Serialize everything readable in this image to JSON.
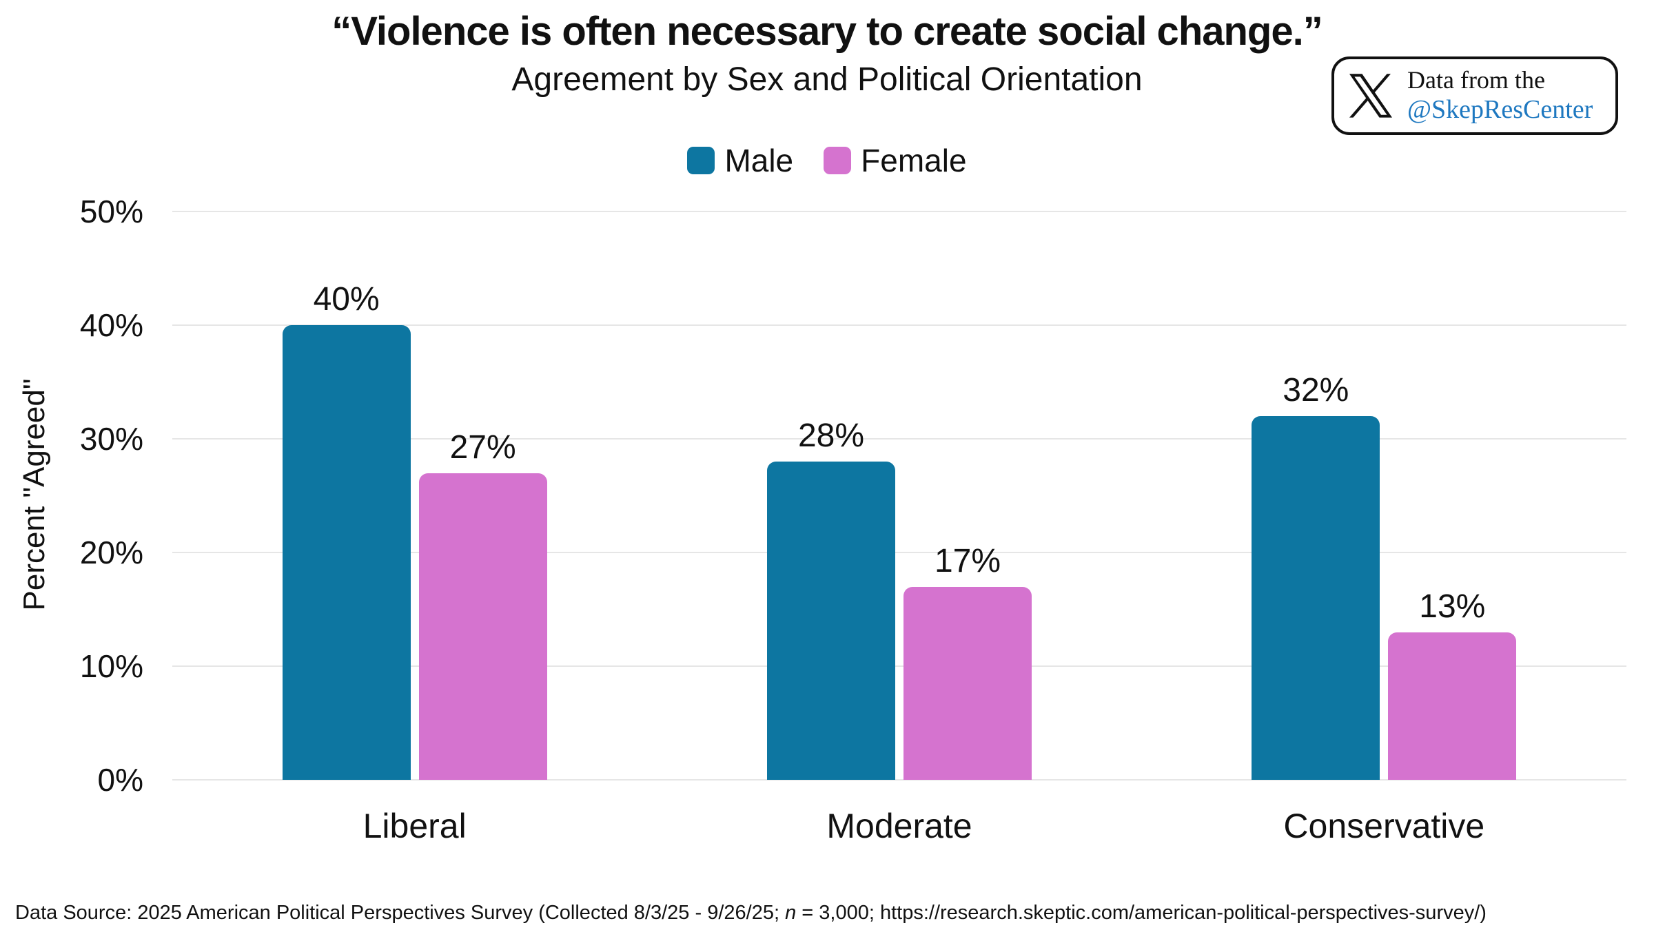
{
  "title": "“Violence is often necessary to create social change.”",
  "subtitle": "Agreement by Sex and Political Orientation",
  "badge": {
    "icon": "x-logo",
    "line1": "Data from the",
    "line2": "@SkepResCenter",
    "handle_color": "#1e78c0"
  },
  "chart_data": {
    "type": "bar",
    "categories": [
      "Liberal",
      "Moderate",
      "Conservative"
    ],
    "series": [
      {
        "name": "Male",
        "color": "#0d76a1",
        "values": [
          40,
          28,
          32
        ],
        "labels": [
          "40%",
          "28%",
          "32%"
        ]
      },
      {
        "name": "Female",
        "color": "#d573cf",
        "values": [
          27,
          17,
          13
        ],
        "labels": [
          "27%",
          "17%",
          "13%"
        ]
      }
    ],
    "ylabel": "Percent \"Agreed\"",
    "yticks": [
      "0%",
      "10%",
      "20%",
      "30%",
      "40%",
      "50%"
    ],
    "ylim": [
      0,
      50
    ],
    "grid": "horizontal",
    "grid_color": "#e6e6e6",
    "legend_position": "top"
  },
  "footer": {
    "source_prefix": "Data Source: 2025 American Political Perspectives Survey (Collected 8/3/25 - 9/26/25; ",
    "n_italic": "n",
    "source_suffix": " = 3,000; https://research.skeptic.com/american-political-perspectives-survey/)"
  }
}
